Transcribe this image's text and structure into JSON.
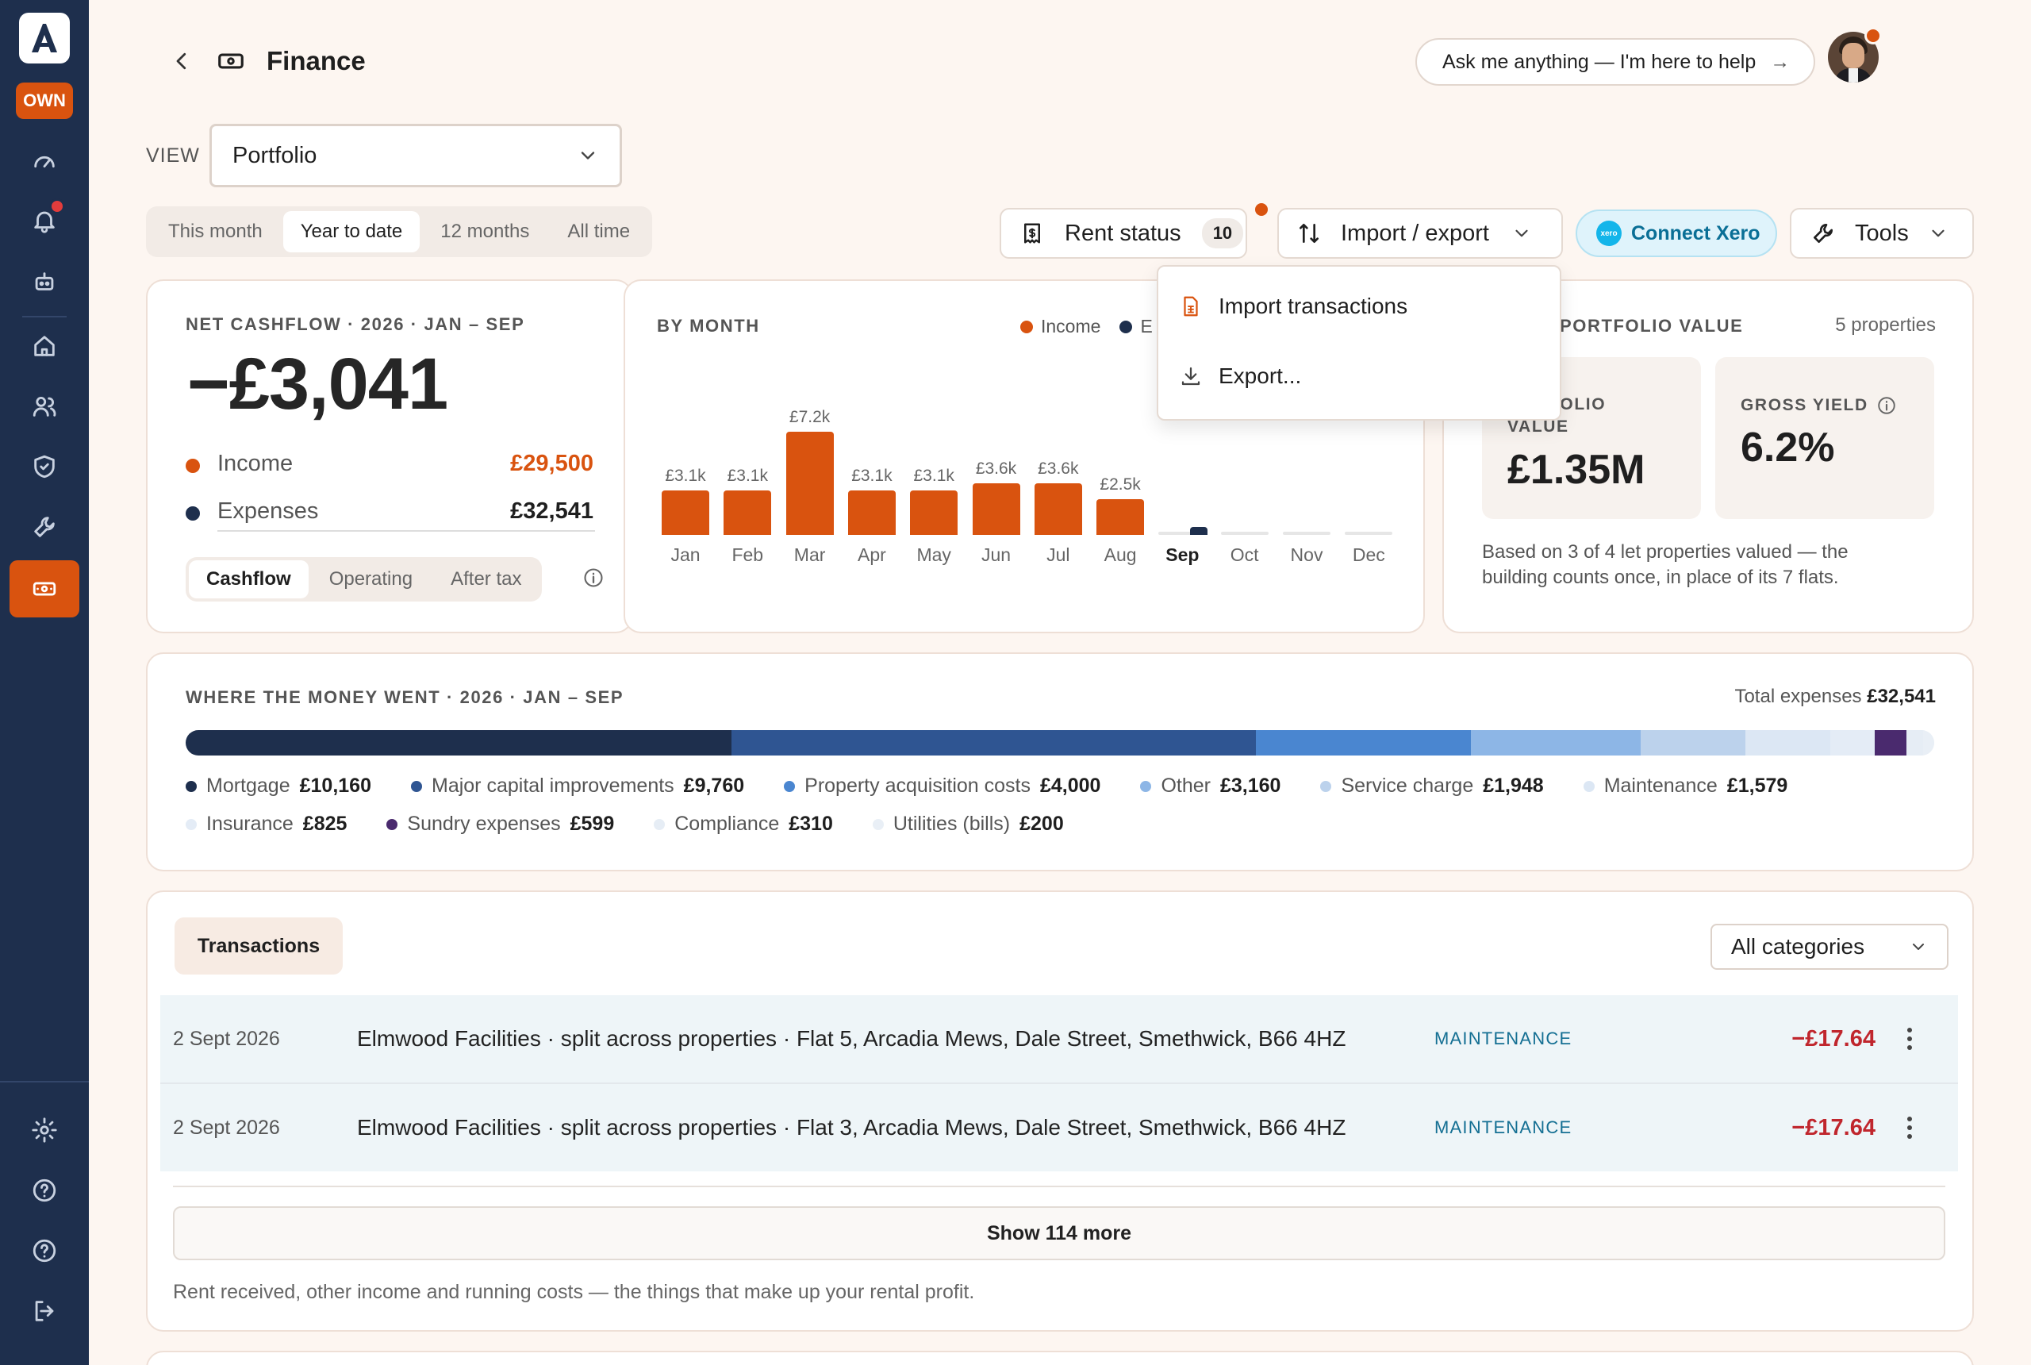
{
  "app": {
    "badge": "OWN"
  },
  "header": {
    "title": "Finance",
    "ask": "Ask me anything — I'm here to help",
    "ask_arrow": "→"
  },
  "view": {
    "label": "VIEW",
    "value": "Portfolio"
  },
  "periods": [
    "This month",
    "Year to date",
    "12 months",
    "All time"
  ],
  "toolbar": {
    "rent_status": "Rent status",
    "rent_count": "10",
    "import_export": "Import / export",
    "connect_xero": "Connect Xero",
    "xero_logo": "xero",
    "tools": "Tools"
  },
  "dropdown": {
    "items": [
      "Import transactions",
      "Export..."
    ]
  },
  "net": {
    "label": "NET CASHFLOW · 2026 · JAN – SEP",
    "value": "−£3,041",
    "income_label": "Income",
    "income": "£29,500",
    "expenses_label": "Expenses",
    "expenses": "£32,541",
    "modes": [
      "Cashflow",
      "Operating",
      "After tax"
    ]
  },
  "chart_data": {
    "type": "bar",
    "title": "BY MONTH",
    "legend": [
      "Income",
      "E"
    ],
    "categories": [
      "Jan",
      "Feb",
      "Mar",
      "Apr",
      "May",
      "Jun",
      "Jul",
      "Aug",
      "Sep",
      "Oct",
      "Nov",
      "Dec"
    ],
    "series": [
      {
        "name": "Income",
        "values": [
          3100,
          3100,
          7200,
          3100,
          3100,
          3600,
          3600,
          2500,
          0,
          0,
          0,
          0
        ],
        "labels": [
          "£3.1k",
          "£3.1k",
          "£7.2k",
          "£3.1k",
          "£3.1k",
          "£3.6k",
          "£3.6k",
          "£2.5k",
          "",
          "",
          "",
          ""
        ]
      }
    ]
  },
  "portfolio": {
    "label": "PORTFOLIO VALUE",
    "count": "5 properties",
    "box1_label1": "FOLIO",
    "box1_label2": "VALUE",
    "box1_value": "£1.35M",
    "box2_label": "GROSS YIELD",
    "box2_value": "6.2%",
    "note1": "Based on 3 of 4 let properties valued — the",
    "note2": "building counts once, in place of its 7 flats."
  },
  "money": {
    "label": "WHERE THE MONEY WENT · 2026 · JAN – SEP",
    "total_label": "Total expenses",
    "total": "£32,541",
    "items": [
      {
        "name": "Mortgage",
        "amount": "£10,160",
        "value": 10160,
        "color": "#1e2f4d"
      },
      {
        "name": "Major capital improvements",
        "amount": "£9,760",
        "value": 9760,
        "color": "#2f5592"
      },
      {
        "name": "Property acquisition costs",
        "amount": "£4,000",
        "value": 4000,
        "color": "#4a86d0"
      },
      {
        "name": "Other",
        "amount": "£3,160",
        "value": 3160,
        "color": "#8db6e6"
      },
      {
        "name": "Service charge",
        "amount": "£1,948",
        "value": 1948,
        "color": "#bcd2ec"
      },
      {
        "name": "Maintenance",
        "amount": "£1,579",
        "value": 1579,
        "color": "#dce7f4"
      },
      {
        "name": "Insurance",
        "amount": "£825",
        "value": 825,
        "color": "#e4ecf6"
      },
      {
        "name": "Sundry expenses",
        "amount": "£599",
        "value": 599,
        "color": "#4a2a6e"
      },
      {
        "name": "Compliance",
        "amount": "£310",
        "value": 310,
        "color": "#e6edf5"
      },
      {
        "name": "Utilities (bills)",
        "amount": "£200",
        "value": 200,
        "color": "#e9eff6"
      }
    ]
  },
  "transactions": {
    "tab": "Transactions",
    "filter": "All categories",
    "rows": [
      {
        "date": "2 Sept 2026",
        "desc": "Elmwood Facilities · split across properties · Flat 5, Arcadia Mews, Dale Street, Smethwick, B66 4HZ",
        "category": "MAINTENANCE",
        "amount": "−£17.64"
      },
      {
        "date": "2 Sept 2026",
        "desc": "Elmwood Facilities · split across properties · Flat 3, Arcadia Mews, Dale Street, Smethwick, B66 4HZ",
        "category": "MAINTENANCE",
        "amount": "−£17.64"
      }
    ],
    "show_more": "Show 114 more",
    "footnote": "Rent received, other income and running costs — the things that make up your rental profit."
  }
}
